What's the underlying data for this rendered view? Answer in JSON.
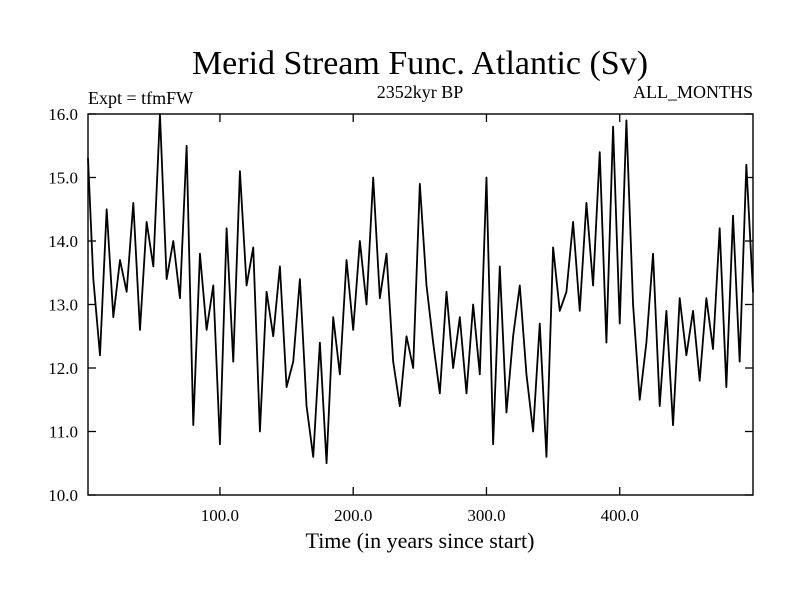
{
  "chart_data": {
    "type": "line",
    "title": "Merid Stream Func. Atlantic (Sv)",
    "subtitle": "2352kyr BP",
    "left_label": "Expt = tfmFW",
    "right_label": "ALL_MONTHS",
    "xlabel": "Time (in years since start)",
    "ylabel": "",
    "xlim": [
      1,
      500
    ],
    "ylim": [
      10,
      16
    ],
    "xticks": [
      100,
      200,
      300,
      400
    ],
    "xtick_labels": [
      "100.0",
      "200.0",
      "300.0",
      "400.0"
    ],
    "yticks": [
      10,
      11,
      12,
      13,
      14,
      15,
      16
    ],
    "ytick_labels": [
      "10.0",
      "11.0",
      "12.0",
      "13.0",
      "14.0",
      "15.0",
      "16.0"
    ],
    "grid": false,
    "colors": {
      "axis": "#000000",
      "line": "#000000",
      "background": "#ffffff"
    },
    "series": [
      {
        "name": "Merid Stream Func. Atlantic",
        "x": [
          1,
          5,
          10,
          15,
          20,
          25,
          30,
          35,
          40,
          45,
          50,
          55,
          60,
          65,
          70,
          75,
          80,
          85,
          90,
          95,
          100,
          105,
          110,
          115,
          120,
          125,
          130,
          135,
          140,
          145,
          150,
          155,
          160,
          165,
          170,
          175,
          180,
          185,
          190,
          195,
          200,
          205,
          210,
          215,
          220,
          225,
          230,
          235,
          240,
          245,
          250,
          255,
          260,
          265,
          270,
          275,
          280,
          285,
          290,
          295,
          300,
          305,
          310,
          315,
          320,
          325,
          330,
          335,
          340,
          345,
          350,
          355,
          360,
          365,
          370,
          375,
          380,
          385,
          390,
          395,
          400,
          405,
          410,
          415,
          420,
          425,
          430,
          435,
          440,
          445,
          450,
          455,
          460,
          465,
          470,
          475,
          480,
          485,
          490,
          495,
          500
        ],
        "values": [
          15.3,
          13.4,
          12.2,
          14.5,
          12.8,
          13.7,
          13.2,
          14.6,
          12.6,
          14.3,
          13.6,
          16.0,
          13.4,
          14.0,
          13.1,
          15.5,
          11.1,
          13.8,
          12.6,
          13.3,
          10.8,
          14.2,
          12.1,
          15.1,
          13.3,
          13.9,
          11.0,
          13.2,
          12.5,
          13.6,
          11.7,
          12.1,
          13.4,
          11.4,
          10.6,
          12.4,
          10.5,
          12.8,
          11.9,
          13.7,
          12.6,
          14.0,
          13.0,
          15.0,
          13.1,
          13.8,
          12.1,
          11.4,
          12.5,
          12.0,
          14.9,
          13.3,
          12.4,
          11.6,
          13.2,
          12.0,
          12.8,
          11.6,
          13.0,
          11.9,
          15.0,
          10.8,
          13.6,
          11.3,
          12.5,
          13.3,
          11.9,
          11.0,
          12.7,
          10.6,
          13.9,
          12.9,
          13.2,
          14.3,
          12.9,
          14.6,
          13.3,
          15.4,
          12.4,
          15.8,
          12.7,
          15.9,
          13.0,
          11.5,
          12.4,
          13.8,
          11.4,
          12.9,
          11.1,
          13.1,
          12.2,
          12.9,
          11.8,
          13.1,
          12.3,
          14.2,
          11.7,
          14.4,
          12.1,
          15.2,
          13.2
        ]
      }
    ]
  }
}
